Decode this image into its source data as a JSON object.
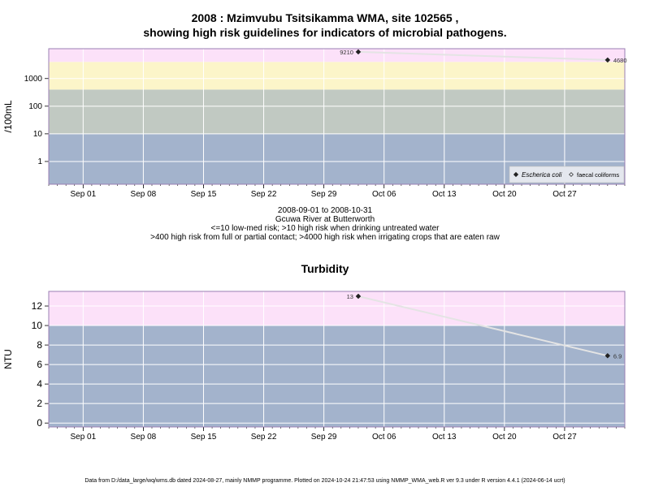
{
  "top": {
    "title_line1": "2008 : Mzimvubu Tsitsikamma WMA, site 102565 ,",
    "title_line2": "showing high risk guidelines for indicators of microbial pathogens.",
    "caption_lines": [
      "2008-09-01 to 2008-10-31",
      "Gcuwa River at Butterworth",
      "<=10 low-med risk; >10 high risk when drinking untreated water",
      ">400 high risk from full or partial contact; >4000 high risk when irrigating crops that are eaten raw"
    ]
  },
  "bottom": {
    "title": "Turbidity"
  },
  "footer": "Data from D:/data_large/wq/wms.db dated 2024-08-27, mainly NMMP programme. Plotted on 2024-10-24 21:47:53 using NMMP_WMA_web.R ver 9.3 under R version 4.4.1 (2024-06-14 ucrt)",
  "colors": {
    "band_low": "#a3b3cc",
    "band_mid": "#c1c9c2",
    "band_high1": "#fcf5c9",
    "band_high2": "#fce1f9",
    "band_blank": "#a3b3cc",
    "grid": "#ffffff",
    "line": "#e4e4e4",
    "point": "#222222"
  },
  "chart_data": [
    {
      "type": "line",
      "title": "2008 : Mzimvubu Tsitsikamma WMA, site 102565 , showing high risk guidelines for indicators of microbial pathogens.",
      "ylabel": "/100mL",
      "yscale": "log",
      "xlim": [
        "2008-08-28",
        "2008-11-03"
      ],
      "ylim": [
        0.15,
        12000
      ],
      "x_tick_labels": [
        "Sep 01",
        "Sep 08",
        "Sep 15",
        "Sep 22",
        "Sep 29",
        "Oct 06",
        "Oct 13",
        "Oct 20",
        "Oct 27"
      ],
      "x_ticks": [
        "2008-09-01",
        "2008-09-08",
        "2008-09-15",
        "2008-09-22",
        "2008-09-29",
        "2008-10-06",
        "2008-10-13",
        "2008-10-20",
        "2008-10-27"
      ],
      "y_ticks": [
        1,
        10,
        100,
        1000
      ],
      "y_tick_labels": [
        "1",
        "10",
        "100",
        "1000"
      ],
      "bands": [
        {
          "from": 0.15,
          "to": 10,
          "color": "band_low"
        },
        {
          "from": 10,
          "to": 400,
          "color": "band_mid"
        },
        {
          "from": 400,
          "to": 4000,
          "color": "band_high1"
        },
        {
          "from": 4000,
          "to": 12000,
          "color": "band_high2"
        }
      ],
      "series": [
        {
          "name": "Escherica coli",
          "marker": "filled-diamond",
          "x": [
            "2008-10-03",
            "2008-11-01"
          ],
          "y": [
            9210,
            4680
          ],
          "labels": [
            "9210",
            "4680"
          ]
        },
        {
          "name": "faecal coliforms",
          "marker": "open-diamond",
          "x": [],
          "y": []
        }
      ],
      "legend": "bottom-right",
      "grid": true
    },
    {
      "type": "line",
      "title": "Turbidity",
      "ylabel": "NTU",
      "yscale": "linear",
      "xlim": [
        "2008-08-28",
        "2008-11-03"
      ],
      "ylim": [
        -0.4,
        13.5
      ],
      "x_tick_labels": [
        "Sep 01",
        "Sep 08",
        "Sep 15",
        "Sep 22",
        "Sep 29",
        "Oct 06",
        "Oct 13",
        "Oct 20",
        "Oct 27"
      ],
      "x_ticks": [
        "2008-09-01",
        "2008-09-08",
        "2008-09-15",
        "2008-09-22",
        "2008-09-29",
        "2008-10-06",
        "2008-10-13",
        "2008-10-20",
        "2008-10-27"
      ],
      "y_ticks": [
        0,
        2,
        4,
        6,
        8,
        10,
        12
      ],
      "y_tick_labels": [
        "0",
        "2",
        "4",
        "6",
        "8",
        "10",
        "12"
      ],
      "bands": [
        {
          "from": -0.4,
          "to": 10,
          "color": "band_low"
        },
        {
          "from": 10,
          "to": 13.5,
          "color": "band_high2"
        }
      ],
      "series": [
        {
          "marker": "filled-diamond",
          "x": [
            "2008-10-03",
            "2008-11-01"
          ],
          "y": [
            13,
            6.9
          ],
          "labels": [
            "13",
            "6.9"
          ]
        }
      ],
      "grid": true
    }
  ]
}
